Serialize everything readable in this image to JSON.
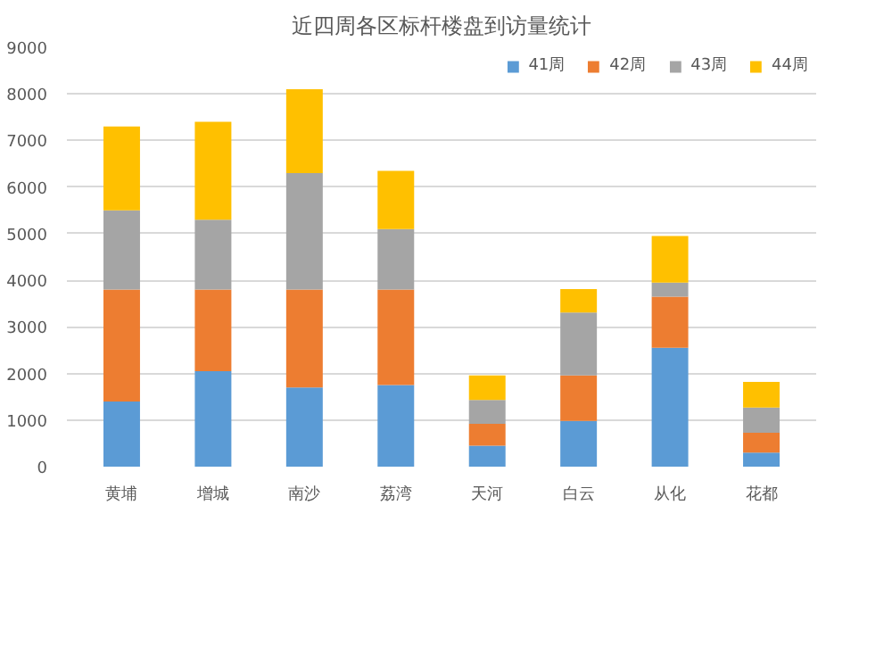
{
  "chart_data": {
    "type": "bar",
    "stacked": true,
    "title": "近四周各区标杆楼盘到访量统计",
    "categories": [
      "黄埔",
      "增城",
      "南沙",
      "荔湾",
      "天河",
      "白云",
      "从化",
      "花都"
    ],
    "series": [
      {
        "name": "41周",
        "color": "#5b9bd5",
        "values": [
          1400,
          2050,
          1700,
          1750,
          450,
          980,
          2550,
          300
        ]
      },
      {
        "name": "42周",
        "color": "#ed7d31",
        "values": [
          2400,
          1750,
          2100,
          2050,
          470,
          980,
          1100,
          430
        ]
      },
      {
        "name": "43周",
        "color": "#a5a5a5",
        "values": [
          1700,
          1500,
          2500,
          1300,
          510,
          1350,
          300,
          540
        ]
      },
      {
        "name": "44周",
        "color": "#ffc000",
        "values": [
          1800,
          2100,
          1800,
          1250,
          530,
          500,
          1000,
          550
        ]
      }
    ],
    "ylim": [
      0,
      9000
    ],
    "yticks": [
      0,
      1000,
      2000,
      3000,
      4000,
      5000,
      6000,
      7000,
      8000,
      9000
    ],
    "grid": "y",
    "legend": "top right"
  }
}
